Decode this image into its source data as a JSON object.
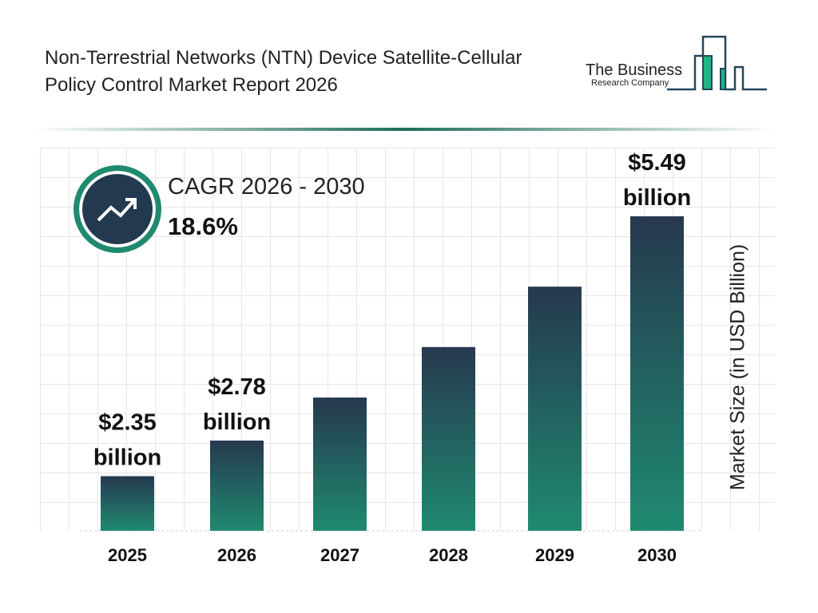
{
  "title": "Non-Terrestrial Networks (NTN) Device Satellite-Cellular Policy Control Market Report 2026",
  "logo": {
    "line1": "The Business",
    "line2": "Research Company"
  },
  "cagr": {
    "label": "CAGR 2026 - 2030",
    "value": "18.6%",
    "icon": "trending-up-icon"
  },
  "colors": {
    "bar_top": "#26384f",
    "bar_bottom": "#1f8a70",
    "accent": "#1f6e5a"
  },
  "chart_data": {
    "type": "bar",
    "categories": [
      "2025",
      "2026",
      "2027",
      "2028",
      "2029",
      "2030"
    ],
    "values": [
      2.35,
      2.78,
      3.3,
      3.91,
      4.64,
      5.49
    ],
    "data_labels": [
      "$2.35 billion",
      "$2.78 billion",
      "",
      "",
      "",
      "$5.49 billion"
    ],
    "title": "",
    "xlabel": "",
    "ylabel": "Market Size (in USD Billion)",
    "grid": true
  }
}
